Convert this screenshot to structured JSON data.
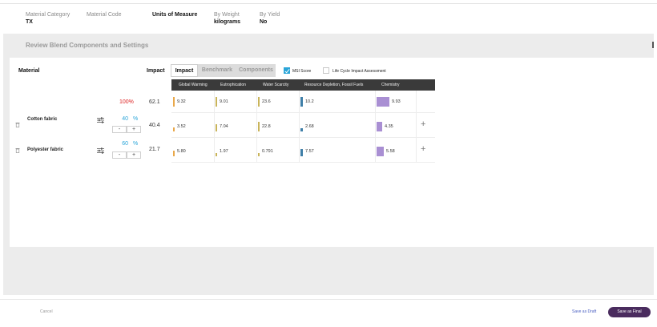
{
  "meta": {
    "material_category_label": "Material Category",
    "material_category_value": "TX",
    "material_code_label": "Material Code",
    "units_label": "Units of Measure",
    "by_weight_label": "By Weight",
    "by_weight_value": "kilograms",
    "by_yield_label": "By Yield",
    "by_yield_value": "No"
  },
  "review_title": "Review Blend Components and Settings",
  "table": {
    "material_header": "Material",
    "impact_header": "Impact",
    "tabs": [
      {
        "label": "Impact",
        "active": true
      },
      {
        "label": "Benchmark",
        "active": false
      },
      {
        "label": "Components",
        "active": false
      }
    ],
    "msi_score_label": "MSI Score",
    "msi_score_checked": true,
    "lcia_label": "Life Cycle Impact Assessment",
    "lcia_checked": false,
    "columns": [
      "Global Warming",
      "Eutrophication",
      "Water Scarcity",
      "Resource Depletion, Fossil Fuels",
      "Chemistry"
    ],
    "column_colors": [
      "#e9a84a",
      "#c9b45a",
      "#c9b45a",
      "#3f7fa8",
      "#a98fd3"
    ],
    "total": {
      "percent": "100%",
      "impact": "62.1",
      "values": [
        "9.32",
        "9.01",
        "23.6",
        "10.2",
        "9.93"
      ]
    },
    "rows": [
      {
        "name": "Cotton fabric",
        "percent": "40",
        "impact": "40.4",
        "values": [
          "3.52",
          "7.04",
          "22.8",
          "2.68",
          "4.35"
        ]
      },
      {
        "name": "Polyester fabric",
        "percent": "60",
        "impact": "21.7",
        "values": [
          "5.80",
          "1.97",
          "0.791",
          "7.57",
          "5.58"
        ]
      }
    ],
    "percent_sign": "%",
    "minus": "-",
    "plus": "+",
    "add": "+"
  },
  "footer": {
    "cancel": "Cancel",
    "save_draft": "Save as Draft",
    "save_final": "Save as Final"
  }
}
